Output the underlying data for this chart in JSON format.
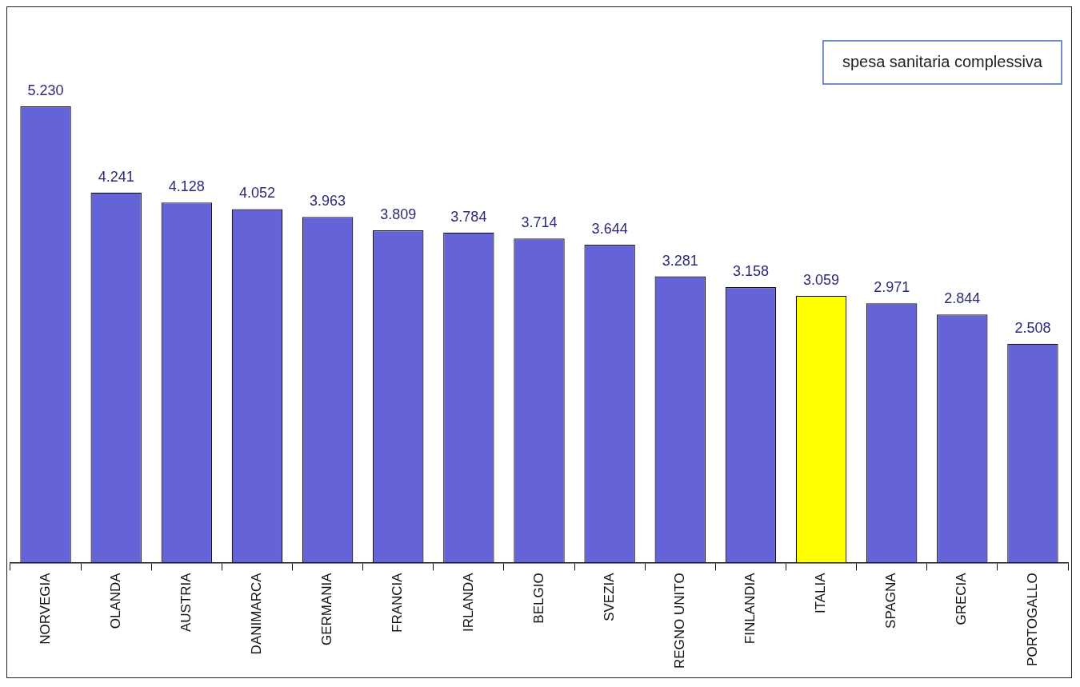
{
  "chart_data": {
    "type": "bar",
    "categories": [
      "NORVEGIA",
      "OLANDA",
      "AUSTRIA",
      "DANIMARCA",
      "GERMANIA",
      "FRANCIA",
      "IRLANDA",
      "BELGIO",
      "SVEZIA",
      "REGNO UNITO",
      "FINLANDIA",
      "ITALIA",
      "SPAGNA",
      "GRECIA",
      "PORTOGALLO"
    ],
    "values": [
      5230,
      4241,
      4128,
      4052,
      3963,
      3809,
      3784,
      3714,
      3644,
      3281,
      3158,
      3059,
      2971,
      2844,
      2508
    ],
    "value_labels": [
      "5.230",
      "4.241",
      "4.128",
      "4.052",
      "3.963",
      "3.809",
      "3.784",
      "3.714",
      "3.644",
      "3.281",
      "3.158",
      "3.059",
      "2.971",
      "2.844",
      "2.508"
    ],
    "colors": [
      "#6464d8",
      "#6464d8",
      "#6464d8",
      "#6464d8",
      "#6464d8",
      "#6464d8",
      "#6464d8",
      "#6464d8",
      "#6464d8",
      "#6464d8",
      "#6464d8",
      "#ffff00",
      "#6464d8",
      "#6464d8",
      "#6464d8"
    ],
    "annotations": [
      "spesa sanitaria complessiva"
    ],
    "grid": false,
    "legend": false
  }
}
